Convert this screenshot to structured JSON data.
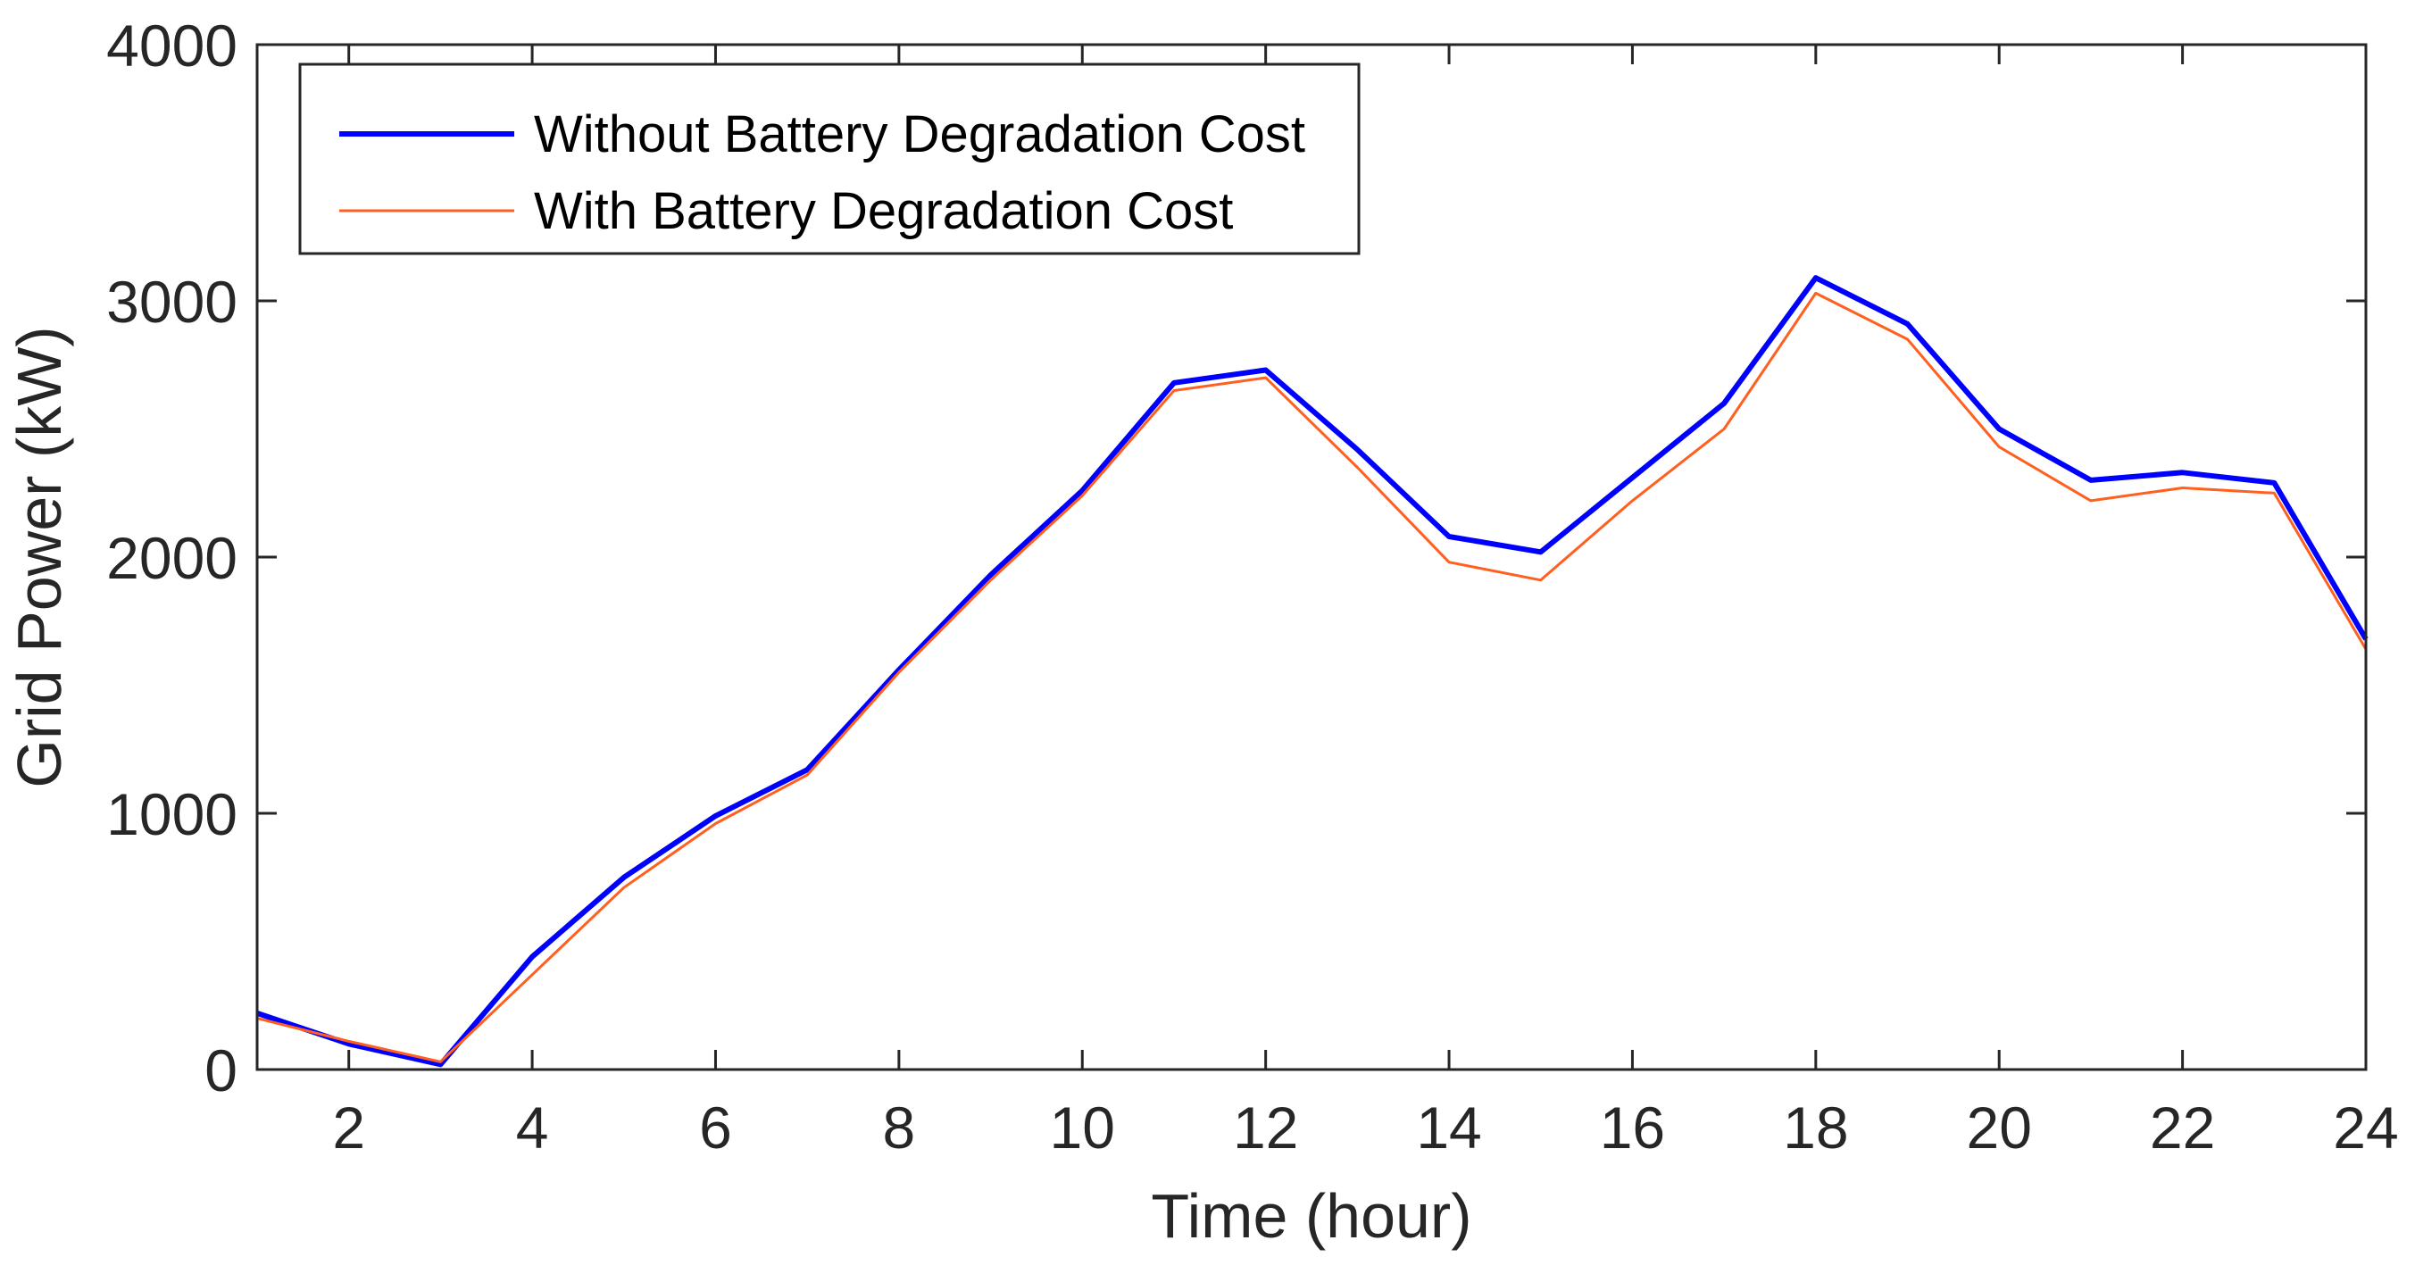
{
  "chart_data": {
    "type": "line",
    "title": "",
    "xlabel": "Time (hour)",
    "ylabel": "Grid Power (kW)",
    "xlim": [
      1,
      24
    ],
    "ylim": [
      0,
      4000
    ],
    "xticks": [
      2,
      4,
      6,
      8,
      10,
      12,
      14,
      16,
      18,
      20,
      22,
      24
    ],
    "xtick_labels": [
      "2",
      "4",
      "6",
      "8",
      "10",
      "12",
      "14",
      "16",
      "18",
      "20",
      "22",
      "24"
    ],
    "yticks": [
      0,
      1000,
      2000,
      3000,
      4000
    ],
    "ytick_labels": [
      "0",
      "1000",
      "2000",
      "3000",
      "4000"
    ],
    "grid": false,
    "legend_position": "top-left",
    "x": [
      1,
      2,
      3,
      4,
      5,
      6,
      7,
      8,
      9,
      10,
      11,
      12,
      13,
      14,
      15,
      16,
      17,
      18,
      19,
      20,
      21,
      22,
      23,
      24
    ],
    "series": [
      {
        "name": "Without Battery Degradation Cost",
        "color": "#0000ff",
        "values": [
          220,
          100,
          20,
          440,
          750,
          990,
          1170,
          1560,
          1930,
          2260,
          2680,
          2730,
          2420,
          2080,
          2020,
          2310,
          2600,
          3090,
          2910,
          2500,
          2300,
          2330,
          2290,
          1680
        ]
      },
      {
        "name": "With Battery Degradation Cost",
        "color": "#ff6020",
        "values": [
          200,
          110,
          30,
          370,
          710,
          960,
          1150,
          1550,
          1910,
          2240,
          2650,
          2700,
          2350,
          1980,
          1910,
          2220,
          2500,
          3030,
          2850,
          2430,
          2220,
          2270,
          2250,
          1640
        ]
      }
    ]
  }
}
